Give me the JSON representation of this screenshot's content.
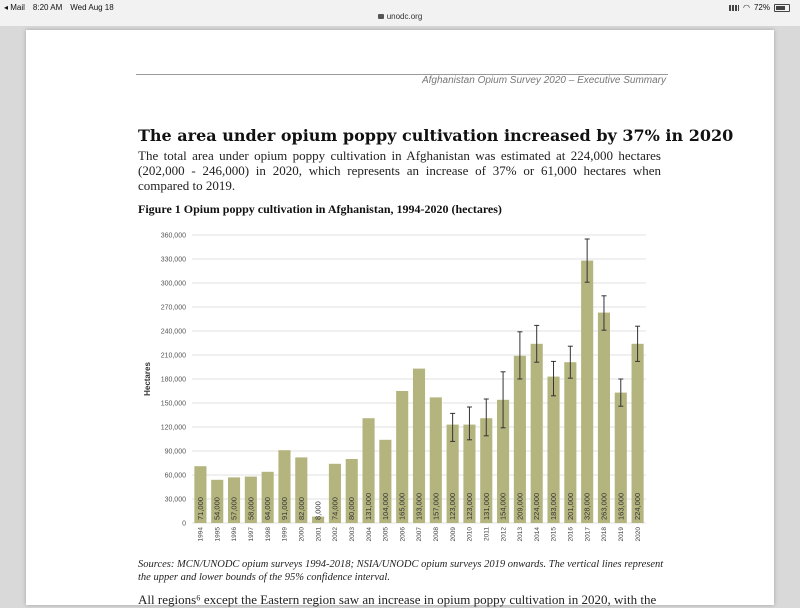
{
  "status_bar": {
    "back_app": "◂ Mail",
    "time": "8:20 AM",
    "date": "Wed Aug 18",
    "url": "unodc.org",
    "battery": "72%"
  },
  "document": {
    "running_header": "Afghanistan Opium Survey 2020 – Executive Summary",
    "heading": "The area under opium poppy cultivation increased by 37% in 2020",
    "paragraph": "The total area under opium poppy cultivation in Afghanistan was estimated at 224,000 hectares (202,000 - 246,000) in 2020, which represents an increase of 37% or 61,000 hectares when compared to 2019.",
    "figure_title": "Figure 1 Opium poppy cultivation in Afghanistan, 1994-2020 (hectares)",
    "sources": "Sources: MCN/UNODC opium surveys 1994-2018; NSIA/UNODC opium surveys 2019 onwards. The vertical lines represent the upper and lower bounds of the 95% confidence interval.",
    "next_paragraph": "All regions⁶ except the Eastern region saw an increase in opium poppy cultivation in 2020, with the"
  },
  "chart_data": {
    "type": "bar",
    "ylabel": "Hectares",
    "ylim": [
      0,
      360000
    ],
    "yticks": [
      "0",
      "30,000",
      "60,000",
      "90,000",
      "120,000",
      "150,000",
      "180,000",
      "210,000",
      "240,000",
      "270,000",
      "300,000",
      "330,000",
      "360,000"
    ],
    "bar_color": "#b4b57e",
    "categories": [
      "1994",
      "1995",
      "1996",
      "1997",
      "1998",
      "1999",
      "2000",
      "2001",
      "2002",
      "2003",
      "2004",
      "2005",
      "2006",
      "2007",
      "2008",
      "2009",
      "2010",
      "2011",
      "2012",
      "2013",
      "2014",
      "2015",
      "2016",
      "2017",
      "2018",
      "2019",
      "2020"
    ],
    "values": [
      71000,
      54000,
      57000,
      58000,
      64000,
      91000,
      82000,
      8000,
      74000,
      80000,
      131000,
      104000,
      165000,
      193000,
      157000,
      123000,
      123000,
      131000,
      154000,
      209000,
      224000,
      183000,
      201000,
      328000,
      263000,
      163000,
      224000
    ],
    "value_labels": [
      "71,000",
      "54,000",
      "57,000",
      "58,000",
      "64,000",
      "91,000",
      "82,000",
      "8,000",
      "74,000",
      "80,000",
      "131,000",
      "104,000",
      "165,000",
      "193,000",
      "157,000",
      "123,000",
      "123,000",
      "131,000",
      "154,000",
      "209,000",
      "224,000",
      "183,000",
      "201,000",
      "328,000",
      "263,000",
      "163,000",
      "224,000"
    ],
    "error_bars": [
      null,
      null,
      null,
      null,
      null,
      null,
      null,
      null,
      null,
      null,
      null,
      null,
      null,
      null,
      null,
      [
        102000,
        137000
      ],
      [
        104000,
        145000
      ],
      [
        109000,
        155000
      ],
      [
        119000,
        189000
      ],
      [
        180000,
        239000
      ],
      [
        201000,
        247000
      ],
      [
        159000,
        202000
      ],
      [
        181000,
        221000
      ],
      [
        301000,
        355000
      ],
      [
        241000,
        284000
      ],
      [
        146000,
        180000
      ],
      [
        202000,
        246000
      ]
    ]
  }
}
